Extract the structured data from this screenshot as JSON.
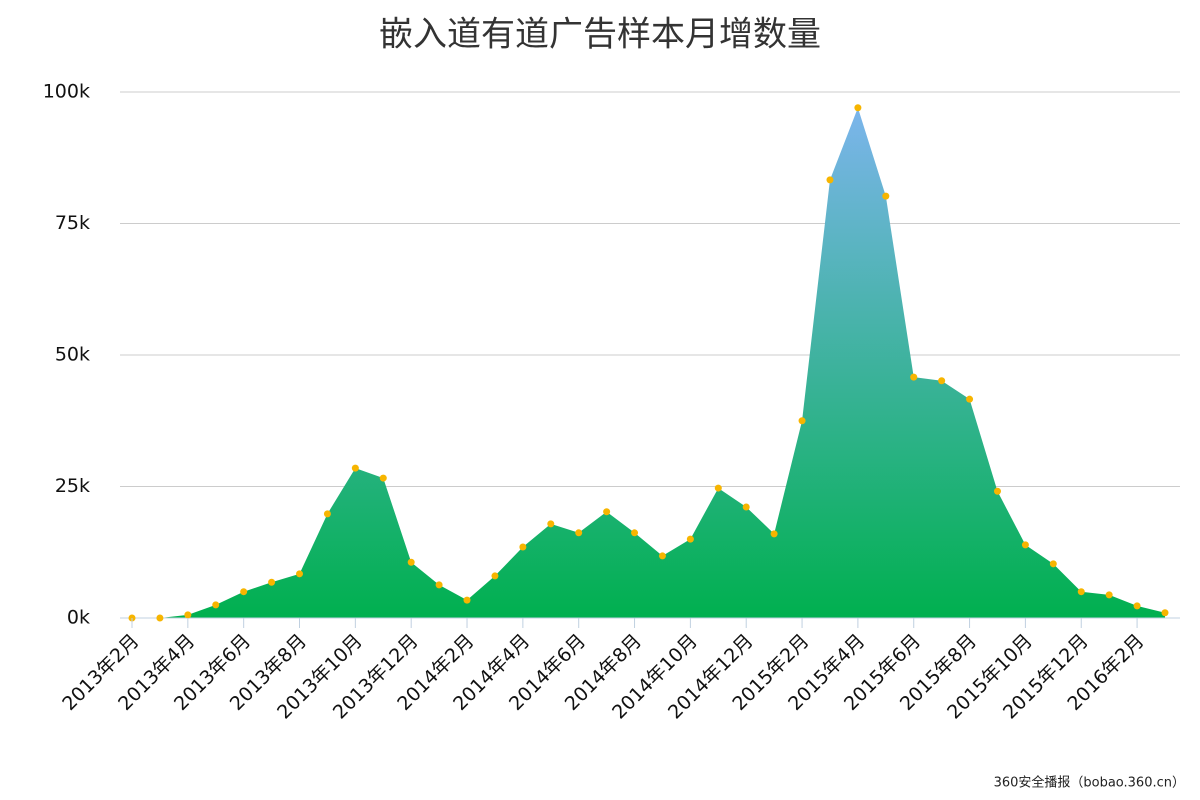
{
  "chart_data": {
    "type": "area",
    "title": "嵌入道有道广告样本月增数量",
    "categories": [
      "2013年2月",
      null,
      "2013年4月",
      null,
      "2013年6月",
      null,
      "2013年8月",
      null,
      "2013年10月",
      null,
      "2013年12月",
      null,
      "2014年2月",
      null,
      "2014年4月",
      null,
      "2014年6月",
      null,
      "2014年8月",
      null,
      "2014年10月",
      null,
      "2014年12月",
      null,
      "2015年2月",
      null,
      "2015年4月",
      null,
      "2015年6月",
      null,
      "2015年8月",
      null,
      "2015年10月",
      null,
      "2015年12月",
      null,
      "2016年2月",
      null
    ],
    "values": [
      0,
      0,
      0.6,
      2.5,
      5,
      6.8,
      8.4,
      19.8,
      28.5,
      26.6,
      10.6,
      6.3,
      3.4,
      8,
      13.5,
      17.9,
      16.2,
      20.2,
      16.2,
      11.8,
      15,
      24.7,
      21.1,
      16,
      37.5,
      83.3,
      97,
      80.2,
      45.8,
      45.1,
      41.6,
      24.1,
      13.9,
      10.3,
      5,
      4.4,
      2.3,
      1
    ],
    "ylim": [
      0,
      100
    ],
    "yticks": [
      {
        "value": 0,
        "label": "0k"
      },
      {
        "value": 25,
        "label": "25k"
      },
      {
        "value": 50,
        "label": "50k"
      },
      {
        "value": 75,
        "label": "75k"
      },
      {
        "value": 100,
        "label": "100k"
      }
    ],
    "grid": true,
    "fill_gradient": [
      "#7cb5ec",
      "#00b04f"
    ],
    "marker_color": "#f7b500",
    "source": "360安全播报（bobao.360.cn）"
  }
}
